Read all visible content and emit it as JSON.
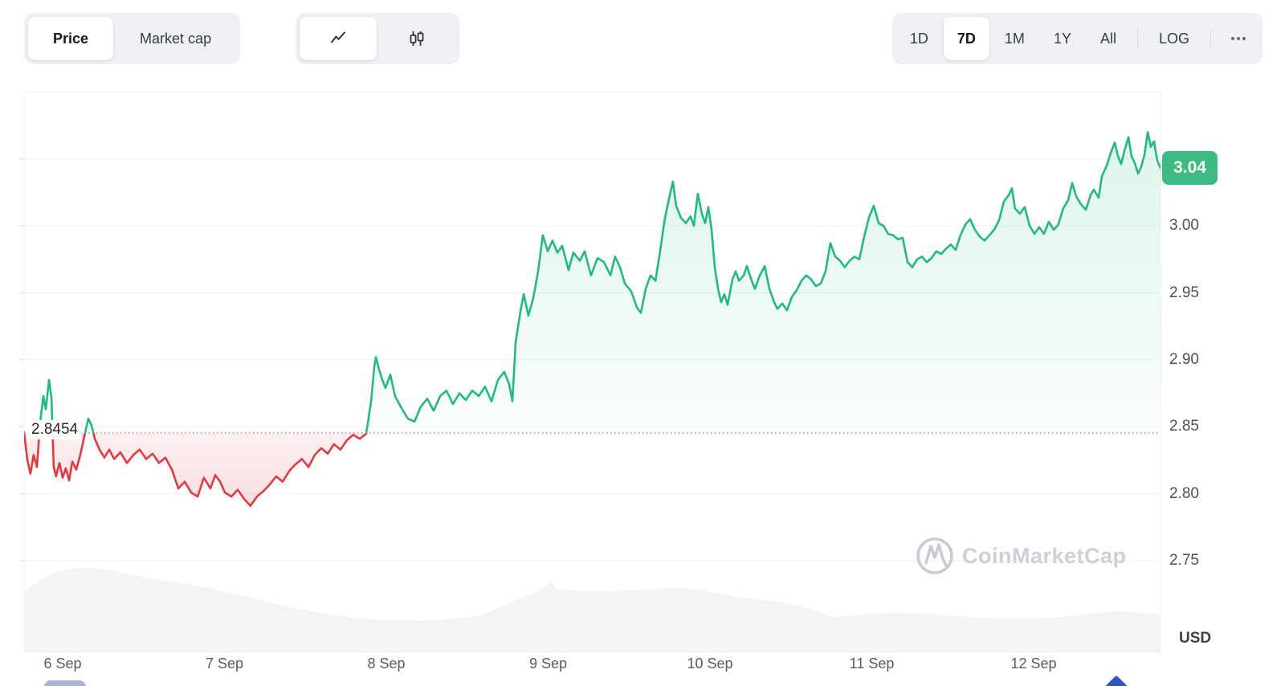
{
  "header": {
    "metric_tabs": [
      {
        "label": "Price",
        "selected": true
      },
      {
        "label": "Market cap",
        "selected": false
      }
    ],
    "chart_type_tabs": [
      {
        "icon": "line-chart-icon",
        "selected": true
      },
      {
        "icon": "candlestick-chart-icon",
        "selected": false
      }
    ],
    "range_tabs": [
      {
        "label": "1D",
        "selected": false
      },
      {
        "label": "7D",
        "selected": true
      },
      {
        "label": "1M",
        "selected": false
      },
      {
        "label": "1Y",
        "selected": false
      },
      {
        "label": "All",
        "selected": false
      }
    ],
    "log_label": "LOG",
    "more_icon": "more-horizontal-icon"
  },
  "watermark": {
    "text": "CoinMarketCap"
  },
  "chart_data": {
    "type": "line",
    "title": "7D price chart",
    "baseline": {
      "value": 2.8454,
      "label": "2.8454"
    },
    "current": {
      "value": 3.043,
      "label": "3.04"
    },
    "y_axis": {
      "unit": "USD",
      "tick_labels": [
        "3.00",
        "2.95",
        "2.90",
        "2.85",
        "2.80",
        "2.75"
      ],
      "tick_values": [
        3.0,
        2.95,
        2.9,
        2.85,
        2.8,
        2.75
      ],
      "gridlines": [
        3.05,
        3.0,
        2.95,
        2.9,
        2.85,
        2.8,
        2.75
      ]
    },
    "x_axis": {
      "tick_labels": [
        "6 Sep",
        "7 Sep",
        "8 Sep",
        "9 Sep",
        "10 Sep",
        "11 Sep",
        "12 Sep"
      ],
      "tick_days": [
        0,
        1,
        2,
        3,
        4,
        5,
        6
      ],
      "range_days": [
        -0.238,
        6.784
      ]
    },
    "colors": {
      "up": "#24b97e",
      "down": "#e03a42",
      "badge": "#3cba81",
      "grid": "#f0f1f3",
      "tick": "#e4e5ea",
      "volume": "#f4f4f6",
      "baseline_dots": "#94969c",
      "fill_up_top": "rgba(36,185,126,0.17)",
      "fill_up_bottom": "rgba(36,185,126,0.02)",
      "fill_down_top": "rgba(224,58,66,0.08)",
      "fill_down_bottom": "rgba(224,58,66,0.17)",
      "watermark_stroke": "#c9cad6"
    },
    "series": [
      {
        "name": "price",
        "points": [
          [
            -0.238,
            2.846
          ],
          [
            -0.218,
            2.825
          ],
          [
            -0.199,
            2.815
          ],
          [
            -0.179,
            2.829
          ],
          [
            -0.159,
            2.82
          ],
          [
            -0.139,
            2.853
          ],
          [
            -0.119,
            2.873
          ],
          [
            -0.104,
            2.863
          ],
          [
            -0.084,
            2.885
          ],
          [
            -0.069,
            2.871
          ],
          [
            -0.055,
            2.82
          ],
          [
            -0.04,
            2.813
          ],
          [
            -0.02,
            2.823
          ],
          [
            0,
            2.812
          ],
          [
            0.02,
            2.819
          ],
          [
            0.04,
            2.81
          ],
          [
            0.06,
            2.824
          ],
          [
            0.084,
            2.818
          ],
          [
            0.109,
            2.829
          ],
          [
            0.134,
            2.843
          ],
          [
            0.159,
            2.856
          ],
          [
            0.179,
            2.851
          ],
          [
            0.199,
            2.841
          ],
          [
            0.228,
            2.833
          ],
          [
            0.258,
            2.827
          ],
          [
            0.288,
            2.833
          ],
          [
            0.318,
            2.826
          ],
          [
            0.357,
            2.831
          ],
          [
            0.397,
            2.823
          ],
          [
            0.437,
            2.829
          ],
          [
            0.476,
            2.833
          ],
          [
            0.516,
            2.826
          ],
          [
            0.556,
            2.83
          ],
          [
            0.595,
            2.823
          ],
          [
            0.635,
            2.827
          ],
          [
            0.675,
            2.818
          ],
          [
            0.715,
            2.804
          ],
          [
            0.754,
            2.809
          ],
          [
            0.794,
            2.801
          ],
          [
            0.834,
            2.798
          ],
          [
            0.873,
            2.812
          ],
          [
            0.913,
            2.804
          ],
          [
            0.943,
            2.814
          ],
          [
            0.973,
            2.809
          ],
          [
            1.002,
            2.801
          ],
          [
            1.042,
            2.798
          ],
          [
            1.082,
            2.803
          ],
          [
            1.122,
            2.796
          ],
          [
            1.161,
            2.791
          ],
          [
            1.201,
            2.798
          ],
          [
            1.241,
            2.802
          ],
          [
            1.28,
            2.807
          ],
          [
            1.32,
            2.813
          ],
          [
            1.36,
            2.809
          ],
          [
            1.4,
            2.817
          ],
          [
            1.439,
            2.822
          ],
          [
            1.479,
            2.826
          ],
          [
            1.519,
            2.82
          ],
          [
            1.558,
            2.829
          ],
          [
            1.598,
            2.834
          ],
          [
            1.638,
            2.83
          ],
          [
            1.677,
            2.837
          ],
          [
            1.717,
            2.833
          ],
          [
            1.757,
            2.84
          ],
          [
            1.796,
            2.844
          ],
          [
            1.836,
            2.841
          ],
          [
            1.876,
            2.845
          ],
          [
            1.906,
            2.869
          ],
          [
            1.926,
            2.895
          ],
          [
            1.936,
            2.902
          ],
          [
            1.955,
            2.893
          ],
          [
            1.975,
            2.885
          ],
          [
            1.995,
            2.879
          ],
          [
            2.025,
            2.889
          ],
          [
            2.054,
            2.873
          ],
          [
            2.094,
            2.864
          ],
          [
            2.134,
            2.856
          ],
          [
            2.174,
            2.854
          ],
          [
            2.213,
            2.865
          ],
          [
            2.253,
            2.871
          ],
          [
            2.293,
            2.862
          ],
          [
            2.333,
            2.873
          ],
          [
            2.372,
            2.877
          ],
          [
            2.412,
            2.867
          ],
          [
            2.452,
            2.875
          ],
          [
            2.491,
            2.87
          ],
          [
            2.531,
            2.877
          ],
          [
            2.571,
            2.873
          ],
          [
            2.61,
            2.88
          ],
          [
            2.65,
            2.869
          ],
          [
            2.69,
            2.885
          ],
          [
            2.729,
            2.891
          ],
          [
            2.759,
            2.882
          ],
          [
            2.779,
            2.869
          ],
          [
            2.799,
            2.913
          ],
          [
            2.829,
            2.936
          ],
          [
            2.849,
            2.949
          ],
          [
            2.878,
            2.933
          ],
          [
            2.908,
            2.946
          ],
          [
            2.938,
            2.966
          ],
          [
            2.967,
            2.993
          ],
          [
            2.997,
            2.981
          ],
          [
            3.027,
            2.989
          ],
          [
            3.057,
            2.98
          ],
          [
            3.087,
            2.985
          ],
          [
            3.126,
            2.967
          ],
          [
            3.156,
            2.98
          ],
          [
            3.196,
            2.974
          ],
          [
            3.226,
            2.981
          ],
          [
            3.265,
            2.963
          ],
          [
            3.305,
            2.976
          ],
          [
            3.345,
            2.973
          ],
          [
            3.385,
            2.963
          ],
          [
            3.414,
            2.977
          ],
          [
            3.444,
            2.969
          ],
          [
            3.474,
            2.957
          ],
          [
            3.514,
            2.951
          ],
          [
            3.549,
            2.939
          ],
          [
            3.573,
            2.935
          ],
          [
            3.603,
            2.953
          ],
          [
            3.633,
            2.963
          ],
          [
            3.663,
            2.959
          ],
          [
            3.692,
            2.981
          ],
          [
            3.722,
            3.006
          ],
          [
            3.752,
            3.023
          ],
          [
            3.771,
            3.033
          ],
          [
            3.791,
            3.015
          ],
          [
            3.821,
            3.006
          ],
          [
            3.851,
            3.002
          ],
          [
            3.88,
            3.007
          ],
          [
            3.9,
            3.0
          ],
          [
            3.925,
            3.024
          ],
          [
            3.95,
            3.009
          ],
          [
            3.97,
            3.002
          ],
          [
            3.99,
            3.014
          ],
          [
            4.01,
            2.997
          ],
          [
            4.03,
            2.969
          ],
          [
            4.05,
            2.953
          ],
          [
            4.069,
            2.943
          ],
          [
            4.089,
            2.949
          ],
          [
            4.109,
            2.941
          ],
          [
            4.139,
            2.96
          ],
          [
            4.159,
            2.966
          ],
          [
            4.179,
            2.959
          ],
          [
            4.209,
            2.963
          ],
          [
            4.228,
            2.97
          ],
          [
            4.258,
            2.959
          ],
          [
            4.278,
            2.953
          ],
          [
            4.308,
            2.963
          ],
          [
            4.338,
            2.97
          ],
          [
            4.367,
            2.953
          ],
          [
            4.397,
            2.943
          ],
          [
            4.417,
            2.938
          ],
          [
            4.447,
            2.942
          ],
          [
            4.476,
            2.937
          ],
          [
            4.506,
            2.947
          ],
          [
            4.536,
            2.952
          ],
          [
            4.566,
            2.959
          ],
          [
            4.595,
            2.963
          ],
          [
            4.625,
            2.96
          ],
          [
            4.655,
            2.955
          ],
          [
            4.685,
            2.957
          ],
          [
            4.714,
            2.966
          ],
          [
            4.744,
            2.987
          ],
          [
            4.774,
            2.977
          ],
          [
            4.804,
            2.974
          ],
          [
            4.833,
            2.969
          ],
          [
            4.863,
            2.974
          ],
          [
            4.893,
            2.977
          ],
          [
            4.923,
            2.975
          ],
          [
            4.953,
            2.992
          ],
          [
            4.982,
            3.006
          ],
          [
            5.012,
            3.015
          ],
          [
            5.042,
            3.002
          ],
          [
            5.072,
            3.0
          ],
          [
            5.101,
            2.994
          ],
          [
            5.131,
            2.993
          ],
          [
            5.161,
            2.99
          ],
          [
            5.191,
            2.991
          ],
          [
            5.221,
            2.973
          ],
          [
            5.25,
            2.969
          ],
          [
            5.28,
            2.975
          ],
          [
            5.31,
            2.977
          ],
          [
            5.34,
            2.973
          ],
          [
            5.369,
            2.976
          ],
          [
            5.399,
            2.981
          ],
          [
            5.429,
            2.979
          ],
          [
            5.459,
            2.983
          ],
          [
            5.489,
            2.986
          ],
          [
            5.518,
            2.982
          ],
          [
            5.548,
            2.993
          ],
          [
            5.578,
            3.001
          ],
          [
            5.608,
            3.005
          ],
          [
            5.637,
            2.997
          ],
          [
            5.667,
            2.992
          ],
          [
            5.697,
            2.989
          ],
          [
            5.727,
            2.993
          ],
          [
            5.756,
            2.997
          ],
          [
            5.786,
            3.004
          ],
          [
            5.816,
            3.018
          ],
          [
            5.846,
            3.023
          ],
          [
            5.866,
            3.028
          ],
          [
            5.885,
            3.013
          ],
          [
            5.915,
            3.009
          ],
          [
            5.945,
            3.014
          ],
          [
            5.975,
            3.0
          ],
          [
            6.005,
            2.994
          ],
          [
            6.034,
            2.999
          ],
          [
            6.064,
            2.994
          ],
          [
            6.094,
            3.003
          ],
          [
            6.124,
            2.997
          ],
          [
            6.153,
            3.001
          ],
          [
            6.183,
            3.013
          ],
          [
            6.213,
            3.019
          ],
          [
            6.238,
            3.032
          ],
          [
            6.263,
            3.022
          ],
          [
            6.293,
            3.016
          ],
          [
            6.323,
            3.012
          ],
          [
            6.352,
            3.023
          ],
          [
            6.372,
            3.027
          ],
          [
            6.402,
            3.021
          ],
          [
            6.422,
            3.037
          ],
          [
            6.452,
            3.045
          ],
          [
            6.481,
            3.056
          ],
          [
            6.501,
            3.062
          ],
          [
            6.521,
            3.052
          ],
          [
            6.541,
            3.046
          ],
          [
            6.561,
            3.056
          ],
          [
            6.586,
            3.066
          ],
          [
            6.605,
            3.052
          ],
          [
            6.625,
            3.047
          ],
          [
            6.645,
            3.039
          ],
          [
            6.665,
            3.044
          ],
          [
            6.685,
            3.053
          ],
          [
            6.705,
            3.07
          ],
          [
            6.724,
            3.059
          ],
          [
            6.744,
            3.063
          ],
          [
            6.764,
            3.049
          ],
          [
            6.784,
            3.043
          ]
        ]
      }
    ],
    "volume_relative": [
      [
        -0.238,
        0.67
      ],
      [
        -0.139,
        0.8
      ],
      [
        -0.04,
        0.89
      ],
      [
        0.06,
        0.93
      ],
      [
        0.159,
        0.94
      ],
      [
        0.308,
        0.91
      ],
      [
        0.432,
        0.86
      ],
      [
        0.605,
        0.8
      ],
      [
        0.804,
        0.75
      ],
      [
        1.002,
        0.67
      ],
      [
        1.201,
        0.59
      ],
      [
        1.4,
        0.5
      ],
      [
        1.598,
        0.44
      ],
      [
        1.796,
        0.38
      ],
      [
        1.995,
        0.36
      ],
      [
        2.194,
        0.35
      ],
      [
        2.392,
        0.37
      ],
      [
        2.591,
        0.41
      ],
      [
        2.789,
        0.57
      ],
      [
        2.888,
        0.64
      ],
      [
        2.988,
        0.73
      ],
      [
        3.017,
        0.79
      ],
      [
        3.047,
        0.71
      ],
      [
        3.186,
        0.68
      ],
      [
        3.384,
        0.68
      ],
      [
        3.583,
        0.69
      ],
      [
        3.781,
        0.72
      ],
      [
        3.93,
        0.7
      ],
      [
        4.079,
        0.64
      ],
      [
        4.278,
        0.59
      ],
      [
        4.477,
        0.55
      ],
      [
        4.626,
        0.48
      ],
      [
        4.755,
        0.39
      ],
      [
        4.874,
        0.41
      ],
      [
        5.023,
        0.43
      ],
      [
        5.172,
        0.44
      ],
      [
        5.32,
        0.43
      ],
      [
        5.469,
        0.41
      ],
      [
        5.618,
        0.39
      ],
      [
        5.767,
        0.38
      ],
      [
        5.916,
        0.38
      ],
      [
        6.065,
        0.38
      ],
      [
        6.214,
        0.4
      ],
      [
        6.362,
        0.43
      ],
      [
        6.511,
        0.46
      ],
      [
        6.61,
        0.45
      ],
      [
        6.71,
        0.43
      ],
      [
        6.784,
        0.42
      ]
    ]
  }
}
